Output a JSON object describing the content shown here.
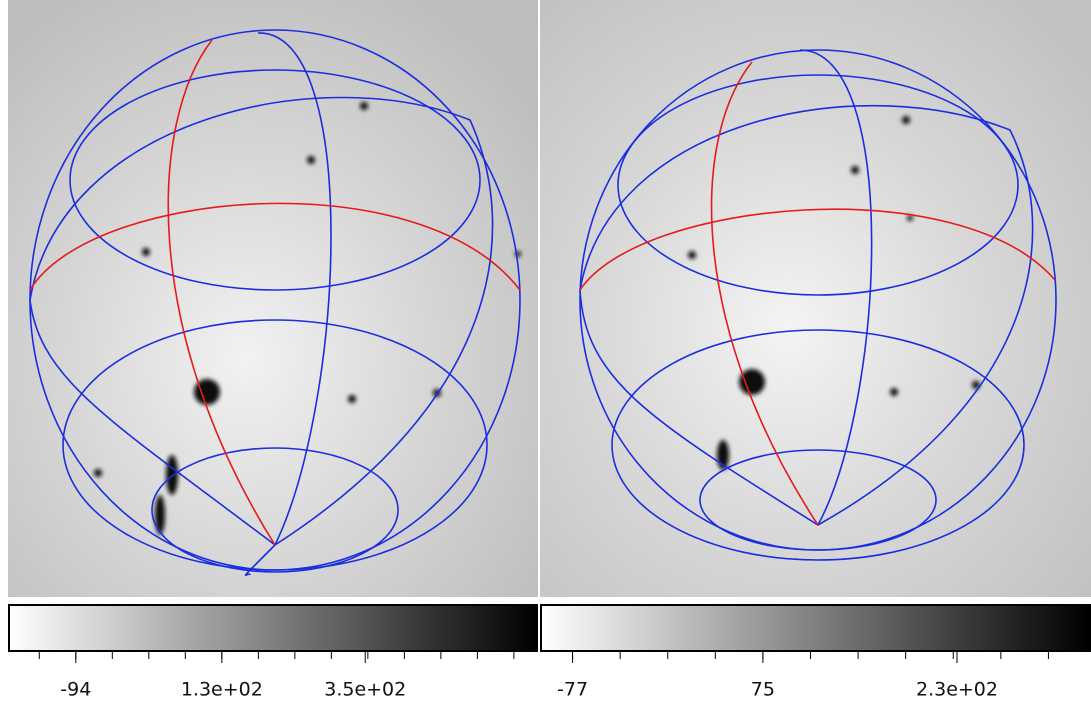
{
  "panels": [
    {
      "colorbar": {
        "range": [
          -198,
          615
        ],
        "ticks": [
          {
            "value": -94,
            "label": "-94"
          },
          {
            "value": 130,
            "label": "1.3e+02"
          },
          {
            "value": 350,
            "label": "3.5e+02"
          }
        ]
      }
    },
    {
      "colorbar": {
        "range": [
          -103,
          337
        ],
        "ticks": [
          {
            "value": -77,
            "label": "-77"
          },
          {
            "value": 75,
            "label": "75"
          },
          {
            "value": 230,
            "label": "2.3e+02"
          }
        ]
      }
    }
  ]
}
